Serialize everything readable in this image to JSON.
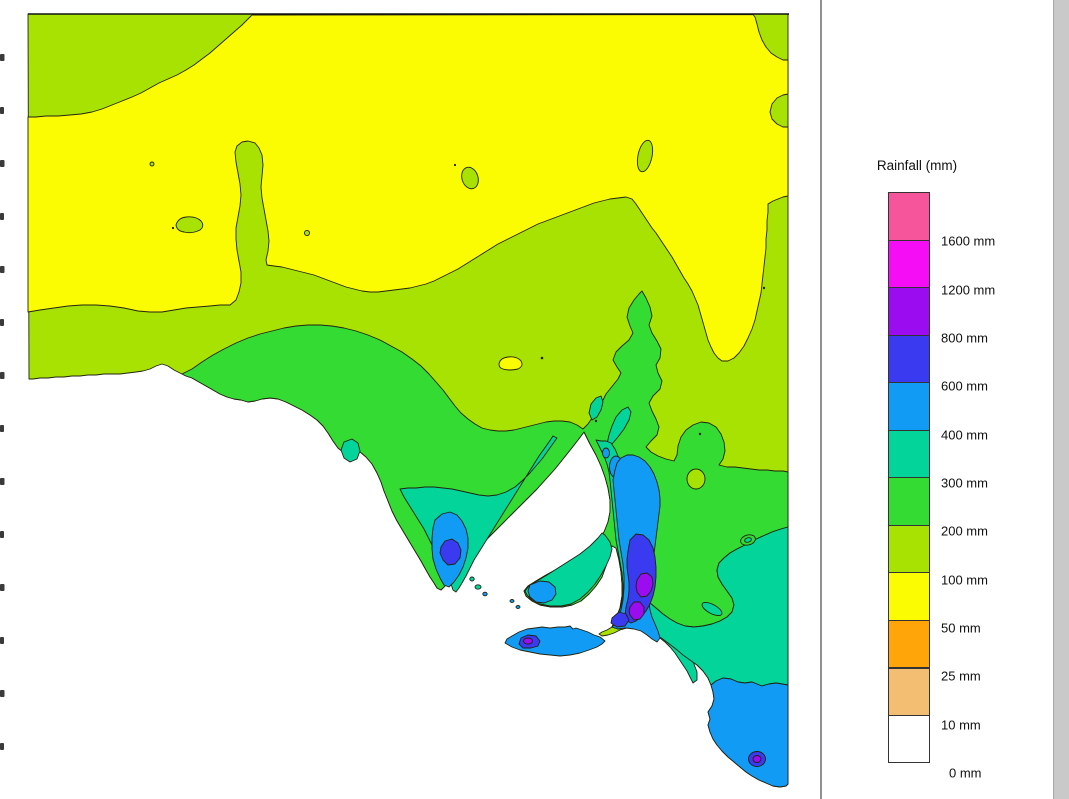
{
  "legend": {
    "title": "Rainfall (mm)",
    "bottom_label": "0 mm",
    "entries": [
      {
        "key": "pink",
        "label": ""
      },
      {
        "key": "magenta",
        "label": "1600 mm"
      },
      {
        "key": "purple",
        "label": "1200 mm"
      },
      {
        "key": "blue",
        "label": "800 mm"
      },
      {
        "key": "lightblue",
        "label": "600 mm"
      },
      {
        "key": "teal",
        "label": "400 mm"
      },
      {
        "key": "green",
        "label": "300 mm"
      },
      {
        "key": "chartreuse",
        "label": "200 mm"
      },
      {
        "key": "yellow",
        "label": "100 mm"
      },
      {
        "key": "orange",
        "label": "50 mm"
      },
      {
        "key": "tan",
        "label": "25 mm"
      },
      {
        "key": "white",
        "label": "10 mm"
      }
    ]
  },
  "palette": {
    "pink": "#F6549B",
    "magenta": "#F50DF5",
    "purple": "#9B0DF0",
    "blue": "#3A3AF0",
    "lightblue": "#129BF5",
    "teal": "#02D49A",
    "green": "#33DB33",
    "chartreuse": "#A8E202",
    "yellow": "#FBFB02",
    "orange": "#FFA50A",
    "tan": "#F3BE72",
    "white": "#FFFFFF",
    "contour": "#222211",
    "frame": "#111111",
    "sep": "#909090",
    "strip": "#C9C9C9"
  }
}
